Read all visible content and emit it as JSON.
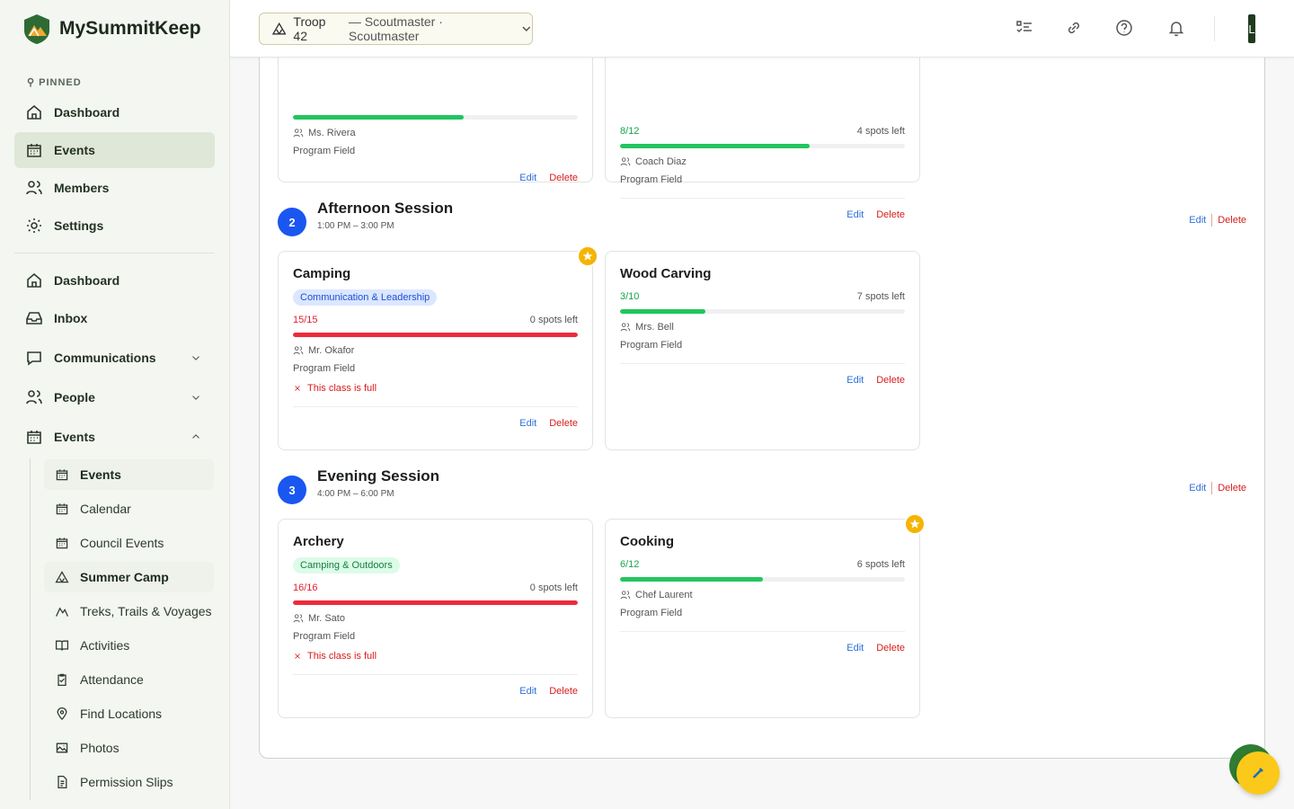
{
  "brand": "MySummitKeep",
  "sidebar": {
    "pinned_label": "PINNED",
    "pinned": [
      {
        "label": "Dashboard"
      },
      {
        "label": "Events",
        "active": true
      },
      {
        "label": "Members"
      },
      {
        "label": "Settings"
      }
    ],
    "nav": [
      {
        "label": "Dashboard"
      },
      {
        "label": "Inbox"
      },
      {
        "label": "Communications",
        "expandable": true
      },
      {
        "label": "People",
        "expandable": true
      },
      {
        "label": "Events",
        "expandable": true,
        "expanded": true
      }
    ],
    "subnav": [
      {
        "label": "Events",
        "active": true
      },
      {
        "label": "Calendar"
      },
      {
        "label": "Council Events"
      },
      {
        "label": "Summer Camp",
        "active": true
      },
      {
        "label": "Treks, Trails & Voyages"
      },
      {
        "label": "Activities"
      },
      {
        "label": "Attendance"
      },
      {
        "label": "Find Locations"
      },
      {
        "label": "Photos"
      },
      {
        "label": "Permission Slips"
      }
    ]
  },
  "topbar": {
    "troop": "Troop 42",
    "role": "— Scoutmaster · Scoutmaster",
    "avatar": "L"
  },
  "actions": {
    "edit": "Edit",
    "delete": "Delete"
  },
  "partial_cards": [
    {
      "instructor": "Ms. Rivera",
      "location": "Program Field"
    },
    {
      "count": "8/12",
      "spots": "4 spots left",
      "instructor": "Coach Diaz",
      "location": "Program Field"
    }
  ],
  "sessions": [
    {
      "number": "2",
      "title": "Afternoon Session",
      "time": "1:00 PM – 3:00 PM",
      "cards": [
        {
          "title": "Camping",
          "featured": true,
          "tag": "Communication & Leadership",
          "tag_color": "blue",
          "count": "15/15",
          "spots": "0 spots left",
          "instructor": "Mr. Okafor",
          "location": "Program Field",
          "full_note": "This class is full"
        },
        {
          "title": "Wood Carving",
          "count": "3/10",
          "spots": "7 spots left",
          "instructor": "Mrs. Bell",
          "location": "Program Field"
        }
      ]
    },
    {
      "number": "3",
      "title": "Evening Session",
      "time": "4:00 PM – 6:00 PM",
      "cards": [
        {
          "title": "Archery",
          "tag": "Camping & Outdoors",
          "tag_color": "green",
          "count": "16/16",
          "spots": "0 spots left",
          "instructor": "Mr. Sato",
          "location": "Program Field",
          "full_note": "This class is full"
        },
        {
          "title": "Cooking",
          "featured": true,
          "count": "6/12",
          "spots": "6 spots left",
          "instructor": "Chef Laurent",
          "location": "Program Field"
        }
      ]
    }
  ]
}
